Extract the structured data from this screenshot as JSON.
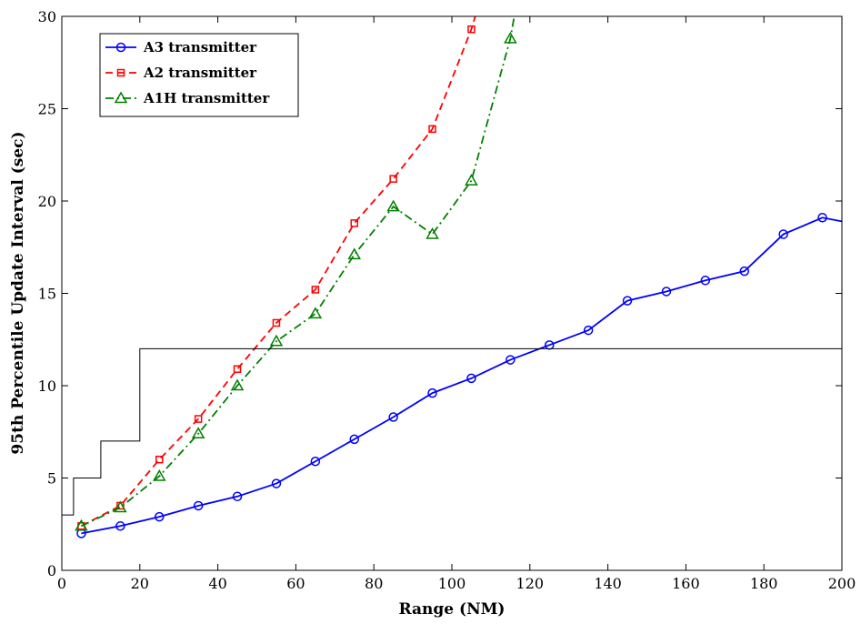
{
  "chart_data": {
    "type": "line",
    "title": "",
    "xlabel": "Range (NM)",
    "ylabel": "95th Percentile Update Interval (sec)",
    "xlim": [
      0,
      200
    ],
    "ylim": [
      0,
      30
    ],
    "xticks": [
      0,
      20,
      40,
      60,
      80,
      100,
      120,
      140,
      160,
      180,
      200
    ],
    "yticks": [
      0,
      5,
      10,
      15,
      20,
      25,
      30
    ],
    "grid": false,
    "legend_position": "top-left",
    "series": [
      {
        "name": "A3 transmitter",
        "color": "#0000ff",
        "line_style": "solid",
        "marker": "circle",
        "x": [
          5,
          15,
          25,
          35,
          45,
          55,
          65,
          75,
          85,
          95,
          105,
          115,
          125,
          135,
          145,
          155,
          165,
          175,
          185,
          195,
          200
        ],
        "y": [
          2.0,
          2.4,
          2.9,
          3.5,
          4.0,
          4.7,
          5.9,
          7.1,
          8.3,
          9.6,
          10.4,
          11.4,
          12.2,
          13.0,
          14.6,
          15.1,
          15.7,
          16.2,
          18.2,
          19.1,
          18.9
        ],
        "markers_on": [
          true,
          true,
          true,
          true,
          true,
          true,
          true,
          true,
          true,
          true,
          true,
          true,
          true,
          true,
          true,
          true,
          true,
          true,
          true,
          true,
          false
        ]
      },
      {
        "name": "A2 transmitter",
        "color": "#ff0000",
        "line_style": "dashed",
        "marker": "square",
        "x": [
          5,
          15,
          25,
          35,
          45,
          55,
          65,
          75,
          85,
          95,
          105,
          106
        ],
        "y": [
          2.4,
          3.5,
          6.0,
          8.2,
          10.9,
          13.4,
          15.2,
          18.8,
          21.2,
          23.9,
          29.3,
          30.0
        ],
        "markers_on": [
          true,
          true,
          true,
          true,
          true,
          true,
          true,
          true,
          true,
          true,
          true,
          false
        ]
      },
      {
        "name": "A1H transmitter",
        "color": "#008000",
        "line_style": "dashdot",
        "marker": "triangle",
        "x": [
          5,
          15,
          25,
          35,
          45,
          55,
          65,
          75,
          85,
          95,
          105,
          115,
          116
        ],
        "y": [
          2.4,
          3.4,
          5.1,
          7.4,
          10.0,
          12.4,
          13.9,
          17.1,
          19.7,
          18.2,
          21.1,
          28.8,
          30.0
        ],
        "markers_on": [
          true,
          true,
          true,
          true,
          true,
          true,
          true,
          true,
          true,
          true,
          true,
          true,
          false
        ]
      },
      {
        "name": "",
        "color": "#000000",
        "line_style": "solid",
        "marker": "none",
        "step": true,
        "x": [
          0,
          3,
          3,
          10,
          10,
          20,
          20,
          200
        ],
        "y": [
          3,
          3,
          5,
          5,
          7,
          7,
          12,
          12
        ]
      }
    ]
  }
}
